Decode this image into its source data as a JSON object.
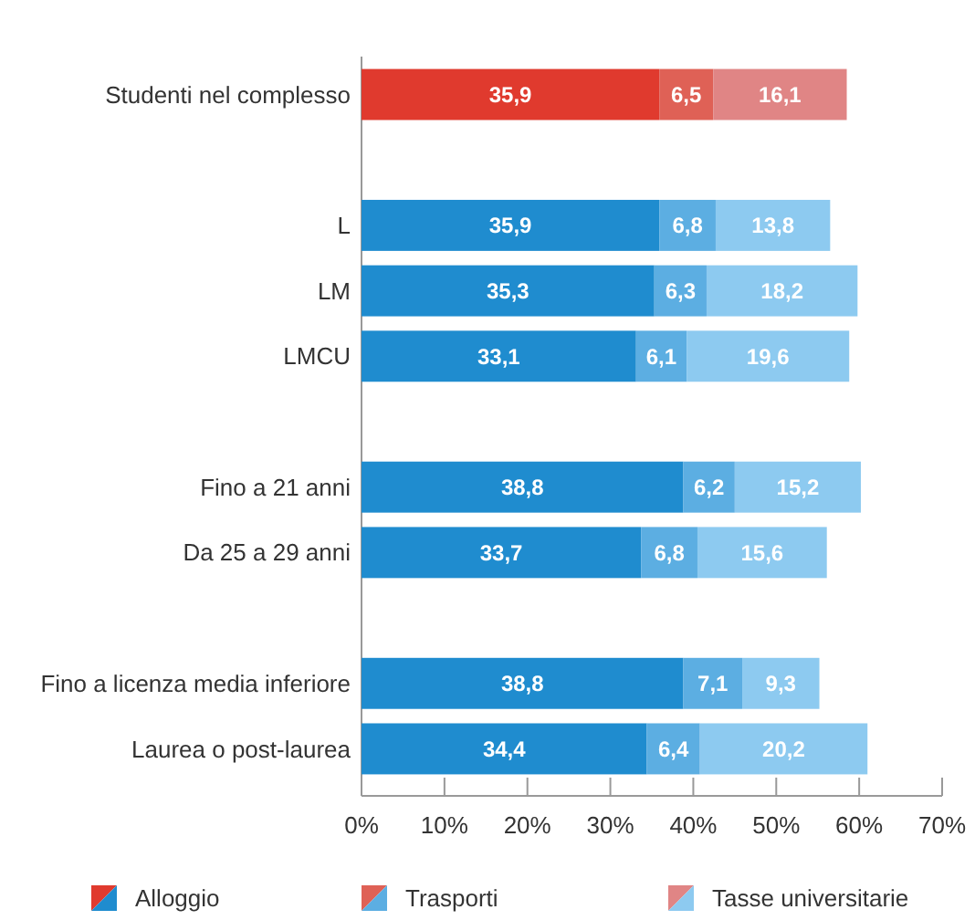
{
  "chart_data": {
    "type": "bar",
    "orientation": "horizontal",
    "stacked": true,
    "legend": "bottom",
    "grid": false,
    "categories": [
      "Studenti nel complesso",
      null,
      "L",
      "LM",
      "LMCU",
      null,
      "Fino a 21 anni",
      "Da 25 a 29 anni",
      null,
      "Fino a licenza media inferiore",
      "Laurea o post-laurea"
    ],
    "xlim": [
      0,
      70
    ],
    "xticks": [
      {
        "value": 0,
        "label": "0%"
      },
      {
        "value": 10,
        "label": "10%"
      },
      {
        "value": 20,
        "label": "20%"
      },
      {
        "value": 30,
        "label": "30%"
      },
      {
        "value": 40,
        "label": "40%"
      },
      {
        "value": 50,
        "label": "50%"
      },
      {
        "value": 60,
        "label": "60%"
      },
      {
        "value": 70,
        "label": "70%"
      }
    ],
    "series": [
      {
        "name": "Alloggio",
        "colors": [
          "#e03a2e",
          null,
          "#1f8ccf",
          "#1f8ccf",
          "#1f8ccf",
          null,
          "#1f8ccf",
          "#1f8ccf",
          null,
          "#1f8ccf",
          "#1f8ccf"
        ],
        "values": [
          35.9,
          null,
          35.9,
          35.3,
          33.1,
          null,
          38.8,
          33.7,
          null,
          38.8,
          34.4
        ],
        "value_labels": [
          "35,9",
          null,
          "35,9",
          "35,3",
          "33,1",
          null,
          "38,8",
          "33,7",
          null,
          "38,8",
          "34,4"
        ]
      },
      {
        "name": "Trasporti",
        "colors": [
          "#df6156",
          null,
          "#5caee2",
          "#5caee2",
          "#5caee2",
          null,
          "#5caee2",
          "#5caee2",
          null,
          "#5caee2",
          "#5caee2"
        ],
        "values": [
          6.5,
          null,
          6.8,
          6.3,
          6.1,
          null,
          6.2,
          6.8,
          null,
          7.1,
          6.4
        ],
        "value_labels": [
          "6,5",
          null,
          "6,8",
          "6,3",
          "6,1",
          null,
          "6,2",
          "6,8",
          null,
          "7,1",
          "6,4"
        ]
      },
      {
        "name": "Tasse universitarie",
        "colors": [
          "#e08585",
          null,
          "#8dcaf0",
          "#8dcaf0",
          "#8dcaf0",
          null,
          "#8dcaf0",
          "#8dcaf0",
          null,
          "#8dcaf0",
          "#8dcaf0"
        ],
        "values": [
          16.1,
          null,
          13.8,
          18.2,
          19.6,
          null,
          15.2,
          15.6,
          null,
          9.3,
          20.2
        ],
        "value_labels": [
          "16,1",
          null,
          "13,8",
          "18,2",
          "19,6",
          null,
          "15,2",
          "15,6",
          null,
          "9,3",
          "20,2"
        ]
      }
    ]
  }
}
